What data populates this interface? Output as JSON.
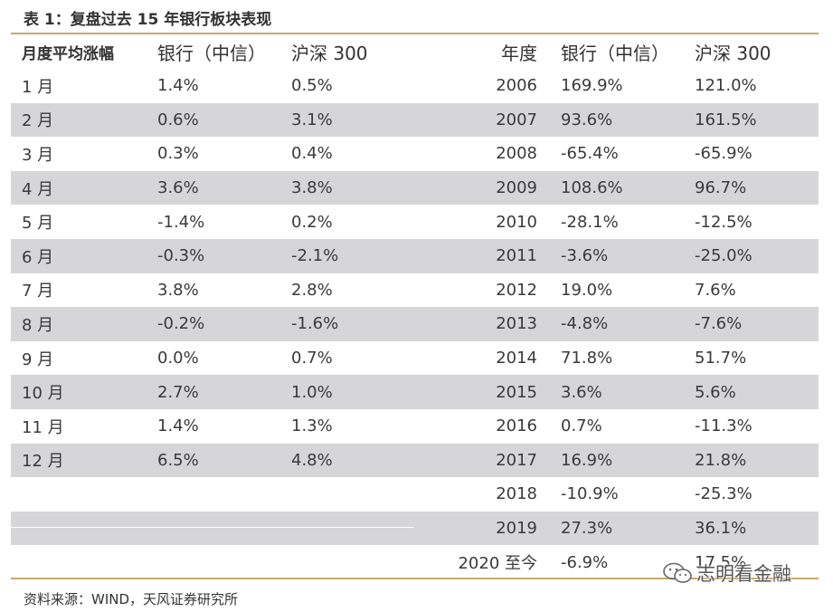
{
  "title": "表 1：复盘过去 15 年银行板块表现",
  "headers": {
    "monthly": "月度平均涨幅",
    "bank": "银行（中信）",
    "hs300": "沪深 300",
    "year": "年度",
    "bank2": "银行（中信）",
    "hs300_2": "沪深 300"
  },
  "monthly_rows": [
    {
      "month": "1 月",
      "bank": "1.4%",
      "hs300": "0.5%"
    },
    {
      "month": "2 月",
      "bank": "0.6%",
      "hs300": "3.1%"
    },
    {
      "month": "3 月",
      "bank": "0.3%",
      "hs300": "0.4%"
    },
    {
      "month": "4 月",
      "bank": "3.6%",
      "hs300": "3.8%"
    },
    {
      "month": "5 月",
      "bank": "-1.4%",
      "hs300": "0.2%"
    },
    {
      "month": "6 月",
      "bank": "-0.3%",
      "hs300": "-2.1%"
    },
    {
      "month": "7 月",
      "bank": "3.8%",
      "hs300": "2.8%"
    },
    {
      "month": "8 月",
      "bank": "-0.2%",
      "hs300": "-1.6%"
    },
    {
      "month": "9 月",
      "bank": "0.0%",
      "hs300": "0.7%"
    },
    {
      "month": "10 月",
      "bank": "2.7%",
      "hs300": "1.0%"
    },
    {
      "month": "11 月",
      "bank": "1.4%",
      "hs300": "1.3%"
    },
    {
      "month": "12 月",
      "bank": "6.5%",
      "hs300": "4.8%"
    }
  ],
  "annual_rows": [
    {
      "year": "2006",
      "bank": "169.9%",
      "hs300": "121.0%"
    },
    {
      "year": "2007",
      "bank": "93.6%",
      "hs300": "161.5%"
    },
    {
      "year": "2008",
      "bank": "-65.4%",
      "hs300": "-65.9%"
    },
    {
      "year": "2009",
      "bank": "108.6%",
      "hs300": "96.7%"
    },
    {
      "year": "2010",
      "bank": "-28.1%",
      "hs300": "-12.5%"
    },
    {
      "year": "2011",
      "bank": "-3.6%",
      "hs300": "-25.0%"
    },
    {
      "year": "2012",
      "bank": "19.0%",
      "hs300": "7.6%"
    },
    {
      "year": "2013",
      "bank": "-4.8%",
      "hs300": "-7.6%"
    },
    {
      "year": "2014",
      "bank": "71.8%",
      "hs300": "51.7%"
    },
    {
      "year": "2015",
      "bank": "3.6%",
      "hs300": "5.6%"
    },
    {
      "year": "2016",
      "bank": "0.7%",
      "hs300": "-11.3%"
    },
    {
      "year": "2017",
      "bank": "16.9%",
      "hs300": "21.8%"
    },
    {
      "year": "2018",
      "bank": "-10.9%",
      "hs300": "-25.3%"
    },
    {
      "year": "2019",
      "bank": "27.3%",
      "hs300": "36.1%"
    },
    {
      "year": "2020 至今",
      "bank": "-6.9%",
      "hs300": "17.5%"
    }
  ],
  "source": "资料来源：WIND，天风证券研究所",
  "watermark": "志明看金融",
  "colors": {
    "accent_rule": "#c7a96a",
    "row_shade": "#d6d6d8"
  }
}
